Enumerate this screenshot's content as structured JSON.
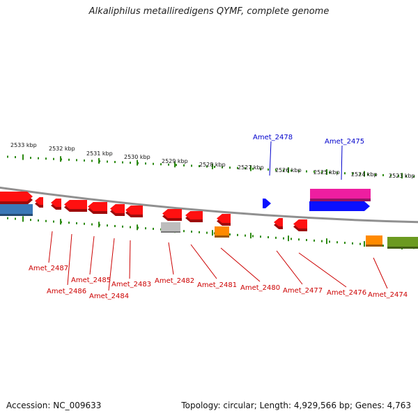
{
  "title": "Alkaliphilus metalliredigens QYMF, complete genome",
  "footer": {
    "accession": "Accession: NC_009633",
    "topology": "Topology: circular; Length: 4,929,566 bp; Genes: 4,763"
  },
  "colors": {
    "backbone": "#909090",
    "major_tick": "#2d8a12",
    "minor_tick": "#2d8a12",
    "red_gene": "#ff1010",
    "red_label": "#cc0000",
    "blue_label": "#0000cc"
  },
  "ruler": {
    "labels": [
      "2533 kbp",
      "2532 kbp",
      "2531 kbp",
      "2530 kbp",
      "2529 kbp",
      "2528 kbp",
      "2527 kbp",
      "2526 kbp",
      "2525 kbp",
      "2524 kbp",
      "2523 kbp"
    ]
  },
  "genes": [
    {
      "color": "#ff1010"
    },
    {
      "color": "#ff1010"
    },
    {
      "color": "#ff1010"
    },
    {
      "color": "#ff1010"
    },
    {
      "color": "#ff1010"
    },
    {
      "color": "#ff1010"
    },
    {
      "color": "#ff1010"
    },
    {
      "color": "#ff1010"
    },
    {
      "color": "#ff1010"
    },
    {
      "color": "#ff1010"
    },
    {
      "color": "#ff1010"
    },
    {
      "color": "#ff1010"
    },
    {
      "color": "#0a10ff"
    },
    {
      "color": "#ee1ea0"
    },
    {
      "color": "#0a10ff"
    },
    {
      "color": "#3a78b8"
    },
    {
      "color": "#bdbdbd"
    },
    {
      "color": "#ff8a00"
    },
    {
      "color": "#ff8a00"
    },
    {
      "color": "#6b9a20"
    }
  ],
  "gene_labels": [
    {
      "text": "Amet_2478",
      "color": "#0000cc"
    },
    {
      "text": "Amet_2475",
      "color": "#0000cc"
    },
    {
      "text": "Amet_2487",
      "color": "#cc0000"
    },
    {
      "text": "Amet_2486",
      "color": "#cc0000"
    },
    {
      "text": "Amet_2485",
      "color": "#cc0000"
    },
    {
      "text": "Amet_2484",
      "color": "#cc0000"
    },
    {
      "text": "Amet_2483",
      "color": "#cc0000"
    },
    {
      "text": "Amet_2482",
      "color": "#cc0000"
    },
    {
      "text": "Amet_2481",
      "color": "#cc0000"
    },
    {
      "text": "Amet_2480",
      "color": "#cc0000"
    },
    {
      "text": "Amet_2477",
      "color": "#cc0000"
    },
    {
      "text": "Amet_2476",
      "color": "#cc0000"
    },
    {
      "text": "Amet_2474",
      "color": "#cc0000"
    }
  ]
}
